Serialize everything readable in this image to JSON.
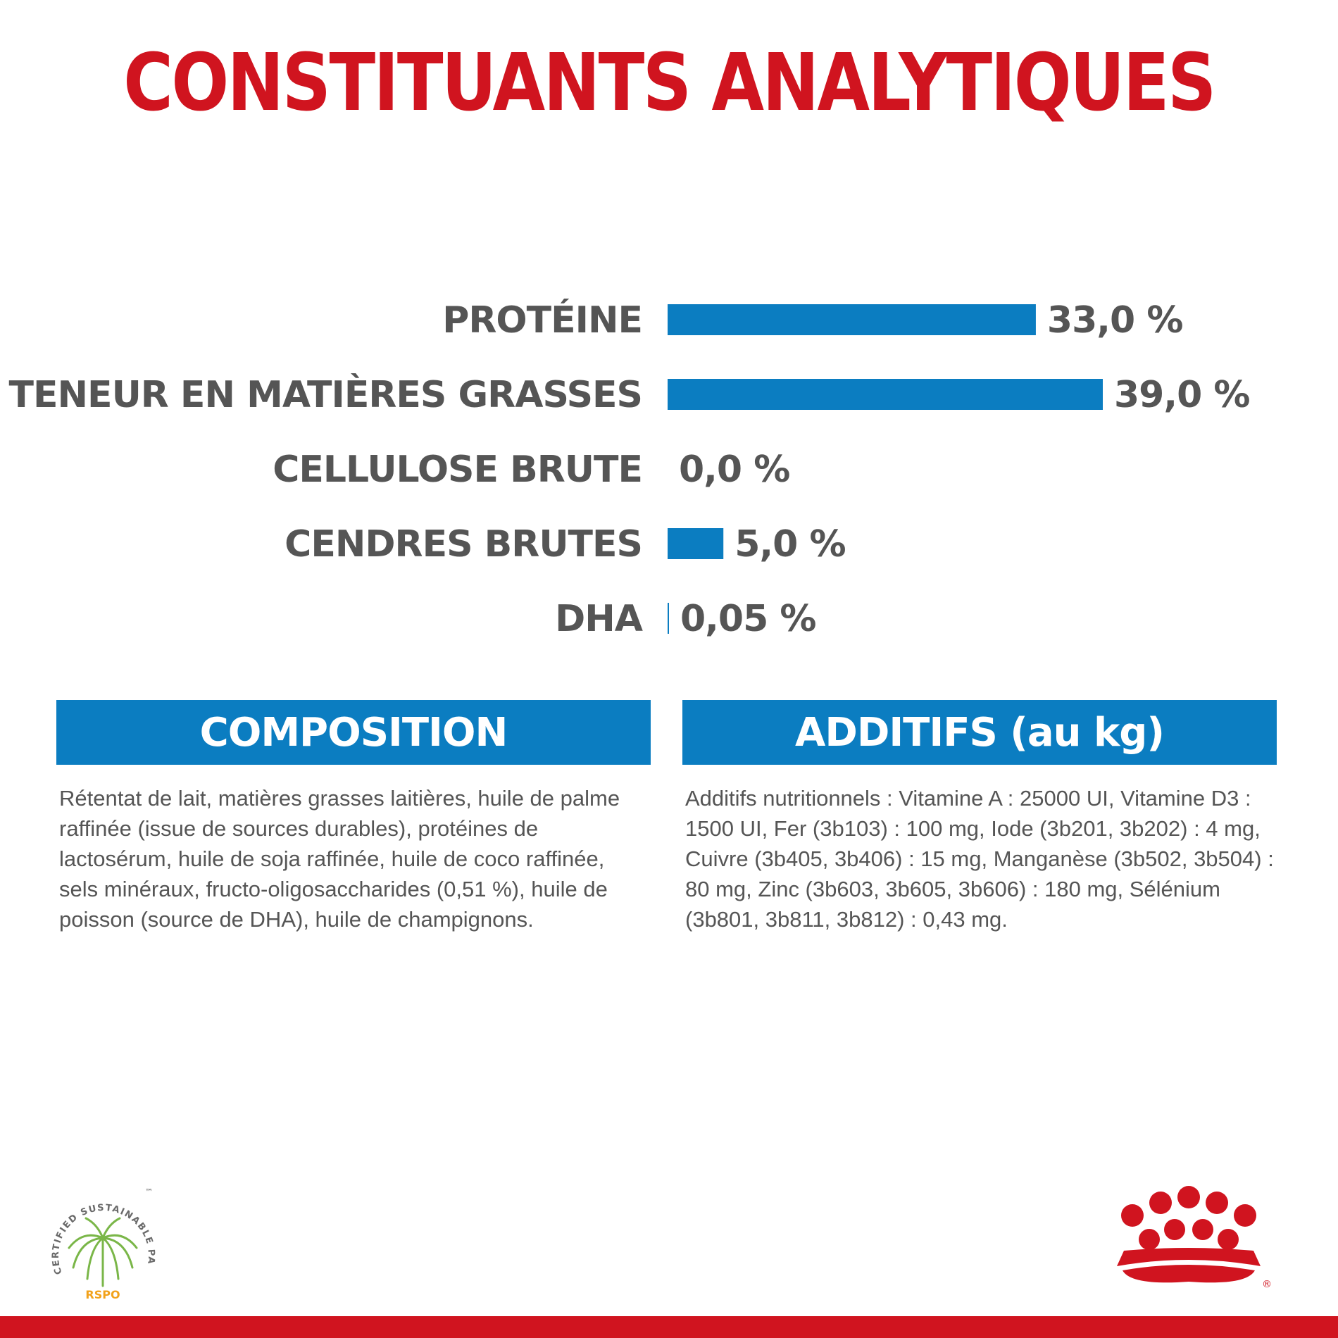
{
  "title": "CONSTITUANTS ANALYTIQUES",
  "chart_data": {
    "type": "bar",
    "orientation": "horizontal",
    "categories": [
      "PROTÉINE",
      "TENEUR EN MATIÈRES GRASSES",
      "CELLULOSE BRUTE",
      "CENDRES BRUTES",
      "DHA"
    ],
    "values": [
      33.0,
      39.0,
      0.0,
      5.0,
      0.05
    ],
    "value_labels": [
      "33,0 %",
      "39,0 %",
      "0,0 %",
      "5,0 %",
      "0,05 %"
    ],
    "unit": "%",
    "xlim": [
      0,
      39
    ],
    "grid": false,
    "bar_color": "#0b7dc1"
  },
  "composition": {
    "header": "COMPOSITION",
    "text": "Rétentat de lait, matières grasses laitières, huile de palme raffinée (issue de sources durables), protéines de lactosérum, huile de soja raffinée, huile de coco raffinée, sels minéraux, fructo-oligosaccharides (0,51 %), huile de poisson (source de DHA), huile de champignons."
  },
  "additifs": {
    "header": "ADDITIFS (au kg)",
    "text": "Additifs nutritionnels : Vitamine A : 25000 UI, Vitamine D3 : 1500 UI, Fer (3b103) : 100 mg, Iode (3b201, 3b202) : 4 mg, Cuivre (3b405, 3b406) : 15 mg, Manganèse (3b502, 3b504) : 80 mg, Zinc (3b603, 3b605, 3b606) : 180 mg, Sélénium (3b801, 3b811, 3b812) : 0,43 mg."
  },
  "logos": {
    "rspo_ring_text": "CERTIFIED SUSTAINABLE PALM OIL",
    "rspo_tm": "™",
    "rspo_label": "RSPO",
    "brand_registered": "®"
  },
  "colors": {
    "title_red": "#d0141f",
    "bar_blue": "#0b7dc1",
    "text_gray": "#555555",
    "rspo_orange": "#f2a21b",
    "rspo_green": "#7ab648"
  }
}
